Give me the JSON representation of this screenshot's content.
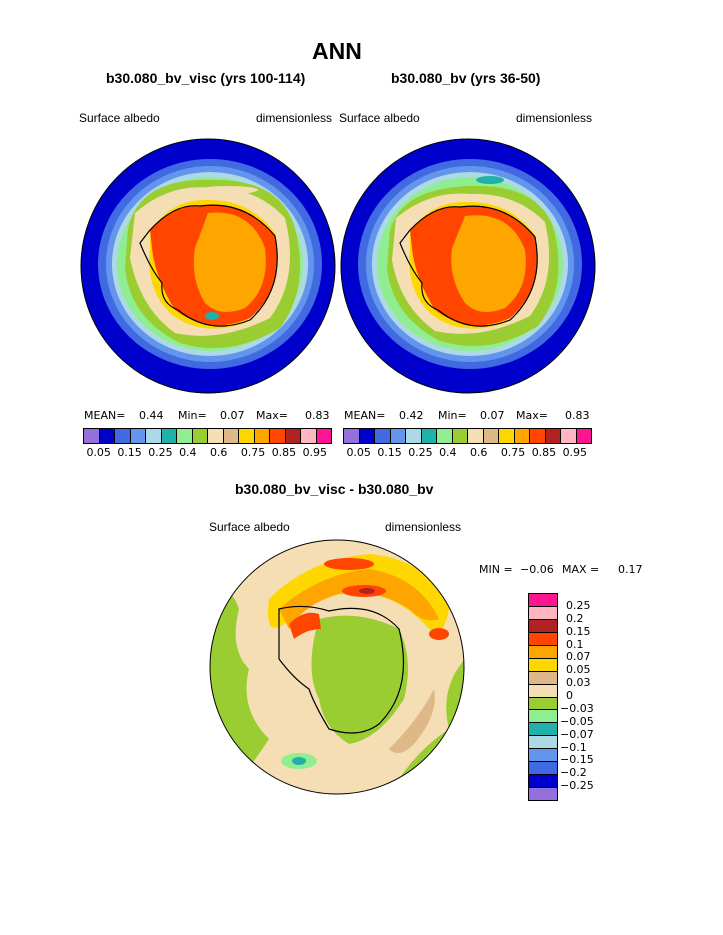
{
  "main_title": "ANN",
  "panels": [
    {
      "case": "b30.080_bv_visc (yrs 100-114)",
      "variable": "Surface albedo",
      "units": "dimensionless",
      "mean_label": "MEAN=",
      "mean": "0.44",
      "min_label": "Min=",
      "min": "0.07",
      "max_label": "Max=",
      "max": "0.83"
    },
    {
      "case": "b30.080_bv (yrs 36-50)",
      "variable": "Surface albedo",
      "units": "dimensionless",
      "mean_label": "MEAN=",
      "mean": "0.42",
      "min_label": "Min=",
      "min": "0.07",
      "max_label": "Max=",
      "max": "0.83"
    }
  ],
  "colorbar": {
    "colors": [
      "#9370db",
      "#0000cd",
      "#4169e1",
      "#6495ed",
      "#add8e6",
      "#20b2aa",
      "#90ee90",
      "#9acd32",
      "#f5deb3",
      "#deb887",
      "#ffd700",
      "#ffa500",
      "#ff4500",
      "#b22222",
      "#ffb6c1",
      "#ff1493"
    ],
    "tick_labels": [
      "0.05",
      "0.15",
      "0.25",
      "0.4",
      "0.6",
      "0.75",
      "0.85",
      "0.95"
    ]
  },
  "diff_panel": {
    "title": "b30.080_bv_visc - b30.080_bv",
    "variable": "Surface albedo",
    "units": "dimensionless",
    "min_label": "MIN =",
    "min": "−0.06",
    "max_label": "MAX =",
    "max": "0.17",
    "colors": [
      "#ff1493",
      "#ffb6c1",
      "#b22222",
      "#ff4500",
      "#ffa500",
      "#ffd700",
      "#deb887",
      "#f5deb3",
      "#9acd32",
      "#90ee90",
      "#20b2aa",
      "#add8e6",
      "#6495ed",
      "#4169e1",
      "#0000cd",
      "#9370db"
    ],
    "tick_labels": [
      "0.25",
      "0.2",
      "0.15",
      "0.1",
      "0.07",
      "0.05",
      "0.03",
      "0",
      "−0.03",
      "−0.05",
      "−0.07",
      "−0.1",
      "−0.15",
      "−0.2",
      "−0.25"
    ]
  }
}
